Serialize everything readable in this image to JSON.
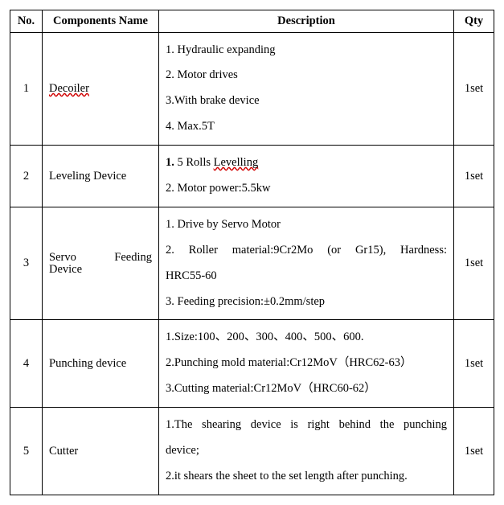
{
  "headers": {
    "no": "No.",
    "components": "Components Name",
    "description": "Description",
    "qty": "Qty"
  },
  "rows": [
    {
      "no": "1",
      "component": "Decoiler",
      "component_spellcheck": true,
      "justify_component": false,
      "qty": "1set",
      "desc_lines": [
        "1. Hydraulic expanding",
        "2. Motor drives",
        "3.With brake device",
        "4. Max.5T"
      ]
    },
    {
      "no": "2",
      "component": "Leveling Device",
      "justify_component": false,
      "qty": "1set",
      "desc_lines": [
        {
          "html": "<b>1.</b> 5 Rolls <span class=\"sq-red\">Levelling</span>"
        },
        "2.  Motor power:5.5kw"
      ]
    },
    {
      "no": "3",
      "component": "Servo Feeding Device",
      "justify_component": true,
      "qty": "1set",
      "desc_lines": [
        "1.  Drive by Servo Motor",
        {
          "html": "<span class=\"just\">2. Roller material:9Cr2Mo (or Gr15), Hardness:</span>HRC55-60"
        },
        "3.  Feeding precision:±0.2mm/step"
      ]
    },
    {
      "no": "4",
      "component": "Punching device",
      "justify_component": false,
      "qty": "1set",
      "desc_lines": [
        "1.Size:100、200、300、400、500、600.",
        "2.Punching mold material:Cr12MoV（HRC62-63）",
        "3.Cutting material:Cr12MoV（HRC60-62）"
      ]
    },
    {
      "no": "5",
      "component": "Cutter",
      "justify_component": false,
      "qty": "1set",
      "desc_lines": [
        {
          "html": "<span class=\"just\">1.The shearing device is right behind the punching</span>device;"
        },
        "2.it shears the sheet to the set length after punching."
      ]
    }
  ]
}
